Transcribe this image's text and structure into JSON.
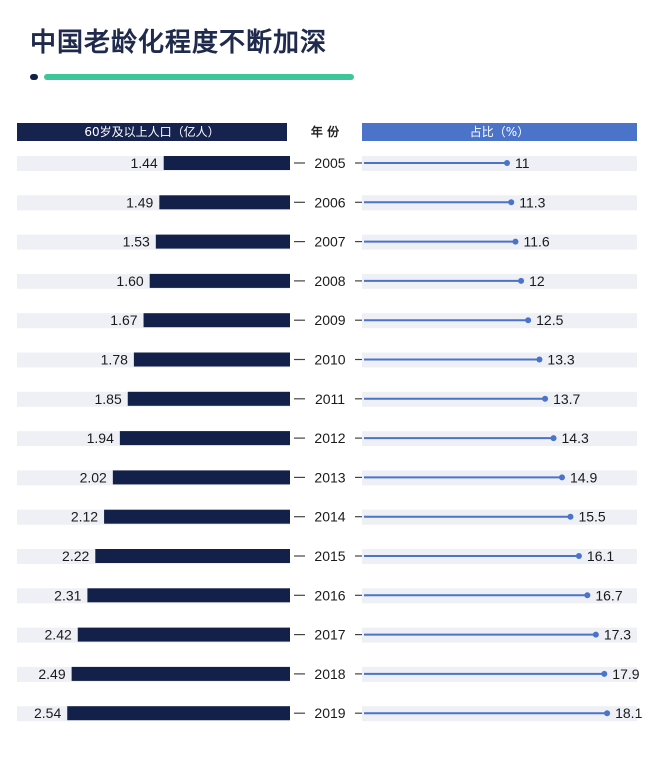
{
  "title": "中国老龄化程度不断加深",
  "header": {
    "left_label": "60岁及以上人口（亿人）",
    "mid_label": "年 份",
    "right_label": "占比（%）"
  },
  "colors": {
    "population_bar": "#13204a",
    "share_line": "#4a73c9",
    "row_stripe": "#eef0f6",
    "accent": "#3ec59b"
  },
  "chart_data": {
    "type": "bar",
    "categories": [
      "2005",
      "2006",
      "2007",
      "2008",
      "2009",
      "2010",
      "2011",
      "2012",
      "2013",
      "2014",
      "2015",
      "2016",
      "2017",
      "2018",
      "2019"
    ],
    "series": [
      {
        "name": "60岁及以上人口（亿人）",
        "values": [
          1.44,
          1.49,
          1.53,
          1.6,
          1.67,
          1.78,
          1.85,
          1.94,
          2.02,
          2.12,
          2.22,
          2.31,
          2.42,
          2.49,
          2.54
        ],
        "labels": [
          "1.44",
          "1.49",
          "1.53",
          "1.60",
          "1.67",
          "1.78",
          "1.85",
          "1.94",
          "2.02",
          "2.12",
          "2.22",
          "2.31",
          "2.42",
          "2.49",
          "2.54"
        ]
      },
      {
        "name": "占比（%）",
        "values": [
          11,
          11.3,
          11.6,
          12,
          12.5,
          13.3,
          13.7,
          14.3,
          14.9,
          15.5,
          16.1,
          16.7,
          17.3,
          17.9,
          18.1
        ],
        "labels": [
          "11",
          "11.3",
          "11.6",
          "12",
          "12.5",
          "13.3",
          "13.7",
          "14.3",
          "14.9",
          "15.5",
          "16.1",
          "16.7",
          "17.3",
          "17.9",
          "18.1"
        ]
      }
    ]
  }
}
